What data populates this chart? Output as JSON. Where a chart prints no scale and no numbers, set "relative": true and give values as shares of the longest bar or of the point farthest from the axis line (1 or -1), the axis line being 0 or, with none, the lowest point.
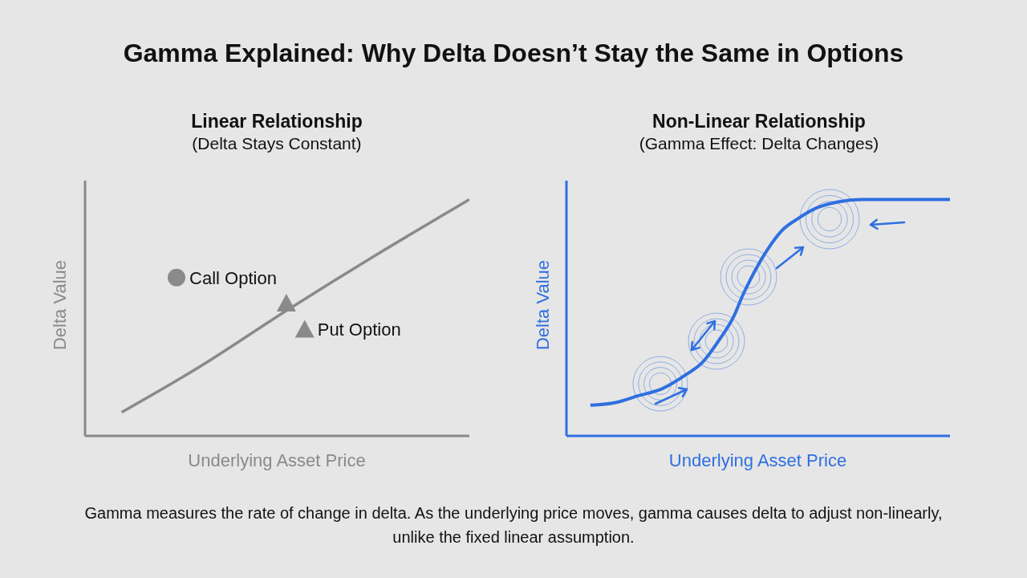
{
  "chart_data": [
    {
      "type": "other",
      "title": "Gamma Explained: Why Delta Doesn’t Stay the Same in Options"
    },
    {
      "type": "line",
      "title": "Linear Relationship",
      "subtitle": "(Delta Stays Constant)",
      "xlabel": "Underlying Asset Price",
      "ylabel": "Delta Value",
      "relative": true,
      "categories": [
        null,
        null,
        null,
        null,
        null,
        null,
        null,
        null,
        null,
        null,
        null,
        null,
        null,
        null,
        null,
        null,
        null,
        null,
        null,
        null,
        null
      ],
      "series": [
        {
          "type": "line",
          "color": "#8a8a8a",
          "marker": "none",
          "values": [
            null,
            0.1,
            null,
            null,
            null,
            0.28,
            null,
            null,
            null,
            null,
            0.53,
            null,
            null,
            null,
            null,
            0.77,
            null,
            null,
            null,
            null,
            1
          ]
        },
        {
          "type": "line",
          "name": "Call Option",
          "color": "#8a8a8a",
          "marker": "circle",
          "values": [
            null,
            null,
            null,
            null,
            0.67,
            null,
            null,
            null,
            null,
            null,
            null,
            null,
            null,
            null,
            null,
            null,
            null,
            null,
            null,
            null,
            null
          ]
        },
        {
          "type": "line",
          "color": "#8a8a8a",
          "marker": "triangle",
          "values": [
            null,
            null,
            null,
            null,
            null,
            null,
            null,
            null,
            null,
            null,
            0.56,
            null,
            null,
            null,
            null,
            null,
            null,
            null,
            null,
            null,
            null
          ]
        },
        {
          "type": "line",
          "name": "Put Option",
          "color": "#8a8a8a",
          "marker": "triangle",
          "values": [
            null,
            null,
            null,
            null,
            null,
            null,
            null,
            null,
            null,
            null,
            null,
            0.45,
            null,
            null,
            null,
            null,
            null,
            null,
            null,
            null,
            null
          ]
        }
      ]
    },
    {
      "type": "line",
      "title": "Non-Linear Relationship",
      "subtitle": "(Gamma Effect: Delta Changes)",
      "xlabel": "Underlying Asset Price",
      "ylabel": "Delta Value",
      "relative": true,
      "categories": [
        null,
        null,
        null,
        null,
        null,
        null,
        null,
        null,
        null,
        null,
        null,
        null,
        null,
        null,
        null,
        null,
        null,
        null,
        null,
        null,
        null,
        null,
        null,
        null,
        null,
        null,
        null,
        null,
        null,
        null,
        null,
        null,
        null,
        null,
        null,
        null,
        null,
        null,
        null,
        null,
        null,
        null,
        null,
        null,
        null,
        null,
        null,
        null
      ],
      "series": [
        {
          "type": "line",
          "color": "#2f6fe0",
          "marker": "none",
          "values": [
            null,
            null,
            0.13,
            null,
            null,
            0.14,
            null,
            null,
            0.17,
            null,
            null,
            0.2,
            null,
            null,
            0.26,
            null,
            0.31,
            null,
            0.4,
            null,
            0.51,
            0.59,
            0.66,
            null,
            0.78,
            null,
            0.87,
            null,
            0.92,
            null,
            0.96,
            null,
            null,
            0.99,
            null,
            null,
            1,
            null,
            null,
            null,
            1,
            null,
            null,
            null,
            null,
            null,
            null,
            1
          ]
        }
      ]
    },
    {
      "type": "other",
      "annotations": [
        "Gamma measures the rate of change in delta. As the underlying price moves, gamma causes delta to adjust non-linearly, unlike the fixed linear assumption."
      ]
    }
  ]
}
